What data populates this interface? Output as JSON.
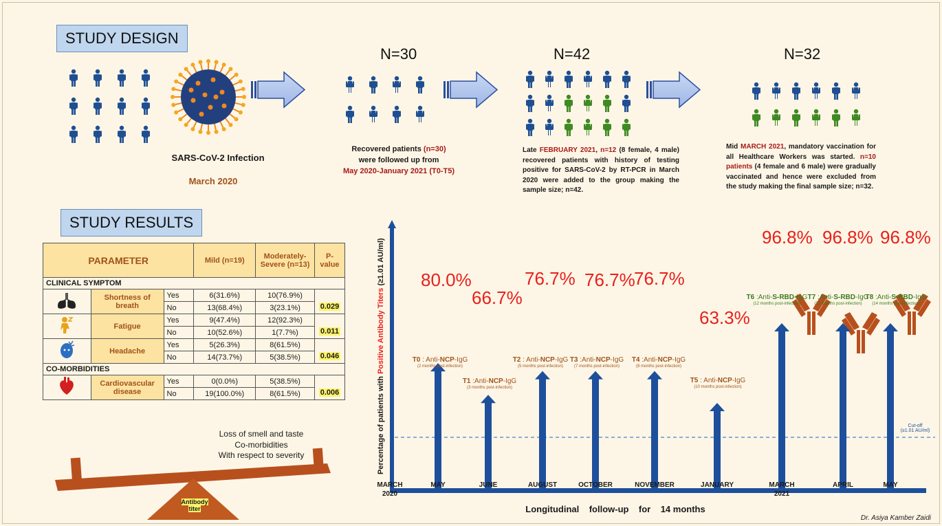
{
  "study_design": {
    "title": "STUDY DESIGN",
    "infection_label": "SARS-CoV-2  Infection",
    "infection_date": "March  2020",
    "stage1": {
      "n": "N=30",
      "desc_a": "Recovered patients ",
      "desc_b": "(n=30)",
      "desc_c": "were followed up from",
      "desc_d": "May 2020-January 2021 (T0-T5)"
    },
    "stage2": {
      "n": "N=42",
      "desc_a": "Late ",
      "desc_b": "FEBRUARY 2021",
      "desc_c": ", ",
      "desc_d": "n=12",
      "desc_e": " (8 female, 4 male) recovered patients with history of testing positive for SARS-CoV-2 by RT-PCR in March 2020 were added to the group making the sample size; n=42."
    },
    "stage3": {
      "n": "N=32",
      "desc_a": "Mid ",
      "desc_b": "MARCH 2021",
      "desc_c": ", mandatory vaccination for all Healthcare Workers was started. ",
      "desc_d": "n=10 patients",
      "desc_e": " (4 female and 6 male) were gradually vaccinated and hence were excluded from the study making the final sample size; n=32."
    }
  },
  "study_results": {
    "title": "STUDY RESULTS",
    "table": {
      "h_param": "PARAMETER",
      "h_mild": "Mild (n=19)",
      "h_mod": "Moderately-Severe (n=13)",
      "h_p": "P-value",
      "grp1": "CLINICAL SYMPTOM",
      "grp2": "CO-MORBIDITIES",
      "rows": [
        {
          "name": "Shortness of breath",
          "yes_mild": "6(31.6%)",
          "yes_mod": "10(76.9%)",
          "no_mild": "13(68.4%)",
          "no_mod": "3(23.1%)",
          "p": "0.029"
        },
        {
          "name": "Fatigue",
          "yes_mild": "9(47.4%)",
          "yes_mod": "12(92.3%)",
          "no_mild": "10(52.6%)",
          "no_mod": "1(7.7%)",
          "p": "0.011"
        },
        {
          "name": "Headache",
          "yes_mild": "5(26.3%)",
          "yes_mod": "8(61.5%)",
          "no_mild": "14(73.7%)",
          "no_mod": "5(38.5%)",
          "p": "0.046"
        },
        {
          "name": "Cardiovascular disease",
          "yes_mild": "0(0.0%)",
          "yes_mod": "5(38.5%)",
          "no_mild": "19(100.0%)",
          "no_mod": "8(61.5%)",
          "p": "0.006"
        }
      ],
      "yes": "Yes",
      "no": "No"
    },
    "balance_text": [
      "Loss of smell and taste",
      "Co-morbidities",
      "With respect to severity"
    ],
    "fulcrum_label": "Antibody titer"
  },
  "chart_data": {
    "type": "bar",
    "ylabel_a": "Percentage of patients with ",
    "ylabel_b": "Positive Antibody Titers",
    "ylabel_c": "   (≥1.01 AU/ml)",
    "xlabel": "Longitudinal    follow-up    for    14 months",
    "cutoff_label_a": "Cut-off",
    "cutoff_label_b": "(≥1.01 AU/ml)",
    "categories": [
      "MARCH 2020",
      "MAY",
      "JUNE",
      "AUGUST",
      "OCTOBER",
      "NOVEMBER",
      "JANUARY",
      "MARCH 2021",
      "APRIL",
      "MAY"
    ],
    "points": [
      {
        "month": "MAY",
        "value": 80.0,
        "label": "80.0%",
        "t": "T0",
        "sep": " : Anti-",
        "ab": "NCP",
        "suffix": "-IgG",
        "sub": "(2 months post-infection)"
      },
      {
        "month": "JUNE",
        "value": 66.7,
        "label": "66.7%",
        "t": "T1",
        "sep": " :Anti-",
        "ab": "NCP",
        "suffix": "-IgG",
        "sub": "(3 months post-infection)"
      },
      {
        "month": "AUGUST",
        "value": 76.7,
        "label": "76.7%",
        "t": "T2",
        "sep": " : Anti-",
        "ab": "NCP",
        "suffix": "-IgG",
        "sub": "(5 months post-infection)"
      },
      {
        "month": "OCTOBER",
        "value": 76.7,
        "label": "76.7%",
        "t": "T3",
        "sep": " :Anti-",
        "ab": "NCP",
        "suffix": "-IgG",
        "sub": "(7 months post-infection)"
      },
      {
        "month": "NOVEMBER",
        "value": 76.7,
        "label": "76.7%",
        "t": "T4",
        "sep": " :Anti-",
        "ab": "NCP",
        "suffix": "-IgG",
        "sub": "(8 months post-infection)"
      },
      {
        "month": "JANUARY",
        "value": 63.3,
        "label": "63.3%",
        "t": "T5",
        "sep": " : Anti-",
        "ab": "NCP",
        "suffix": "-IgG",
        "sub": "(10 months post-infection)"
      },
      {
        "month": "MARCH 2021",
        "value": 96.8,
        "label": "96.8%",
        "t": "T6",
        "sep": " :Anti-",
        "ab": "S-RBD",
        "suffix": "-IgG",
        "sub": "(12 months post-infection)"
      },
      {
        "month": "APRIL",
        "value": 96.8,
        "label": "96.8%",
        "t": "T7",
        "sep": " :Anti-",
        "ab": "S-RBD",
        "suffix": "-IgG",
        "sub": "(13 months post-infection)"
      },
      {
        "month": "MAY",
        "value": 96.8,
        "label": "96.8%",
        "t": "T8",
        "sep": " :Anti-",
        "ab": "S-RBD",
        "suffix": "-IgG",
        "sub": "(14 months post-infection)"
      }
    ],
    "colors": {
      "ncp": "#b8501e",
      "srbd": "#3f8a22",
      "arrow": "#1d4f9c",
      "pct": "#e8201c"
    }
  },
  "signature": "Dr. Asiya Kamber Zaidi"
}
